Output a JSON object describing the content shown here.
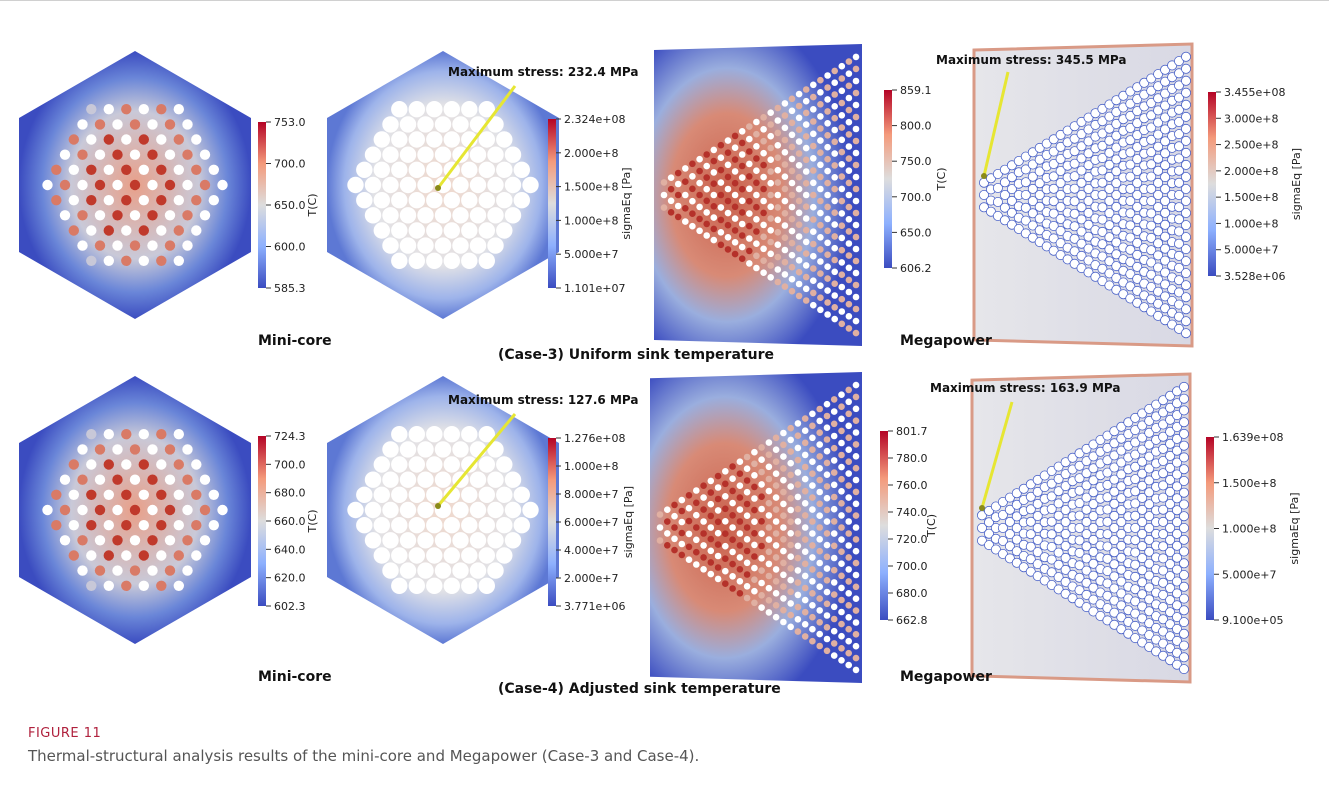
{
  "figure": {
    "caption_head": "FIGURE 11",
    "caption_text": "Thermal-structural analysis results of the mini-core and Megapower (Case-3 and Case-4)."
  },
  "rows": [
    {
      "case_label": "(Case-3) Uniform sink temperature",
      "minicore_label": "Mini-core",
      "megapower_label": "Megapower",
      "minicore_stress_annotation": "Maximum stress: 232.4 MPa",
      "megapower_stress_annotation": "Maximum stress: 345.5 MPa",
      "minicore_temp_bar": {
        "title": "T(C)",
        "max": "753.0",
        "min": "585.3",
        "ticks": [
          "700.0",
          "650.0",
          "600.0"
        ]
      },
      "minicore_stress_bar": {
        "title": "sigmaEq [Pa]",
        "max": "2.324e+08",
        "min": "1.101e+07",
        "ticks": [
          "2.000e+8",
          "1.500e+8",
          "1.000e+8",
          "5.000e+7"
        ]
      },
      "megapower_temp_bar": {
        "title": "T(C)",
        "max": "859.1",
        "min": "606.2",
        "ticks": [
          "800.0",
          "750.0",
          "700.0",
          "650.0"
        ]
      },
      "megapower_stress_bar": {
        "title": "sigmaEq [Pa]",
        "max": "3.455e+08",
        "min": "3.528e+06",
        "ticks": [
          "3.000e+8",
          "2.500e+8",
          "2.000e+8",
          "1.500e+8",
          "1.000e+8",
          "5.000e+7"
        ]
      }
    },
    {
      "case_label": "(Case-4) Adjusted sink temperature",
      "minicore_label": "Mini-core",
      "megapower_label": "Megapower",
      "minicore_stress_annotation": "Maximum stress: 127.6 MPa",
      "megapower_stress_annotation": "Maximum stress: 163.9 MPa",
      "minicore_temp_bar": {
        "title": "T(C)",
        "max": "724.3",
        "min": "602.3",
        "ticks": [
          "700.0",
          "680.0",
          "660.0",
          "640.0",
          "620.0"
        ]
      },
      "minicore_stress_bar": {
        "title": "sigmaEq [Pa]",
        "max": "1.276e+08",
        "min": "3.771e+06",
        "ticks": [
          "1.000e+8",
          "8.000e+7",
          "6.000e+7",
          "4.000e+7",
          "2.000e+7"
        ]
      },
      "megapower_temp_bar": {
        "title": "T(C)",
        "max": "801.7",
        "min": "662.8",
        "ticks": [
          "780.0",
          "760.0",
          "740.0",
          "720.0",
          "700.0",
          "680.0"
        ]
      },
      "megapower_stress_bar": {
        "title": "sigmaEq [Pa]",
        "max": "1.639e+08",
        "min": "9.100e+05",
        "ticks": [
          "1.500e+8",
          "1.000e+8",
          "5.000e+7"
        ]
      }
    }
  ],
  "colors": {
    "cool": "#3b4cc0",
    "mid": "#dddddd",
    "warm": "#b40426",
    "callout": "#e6e633"
  }
}
